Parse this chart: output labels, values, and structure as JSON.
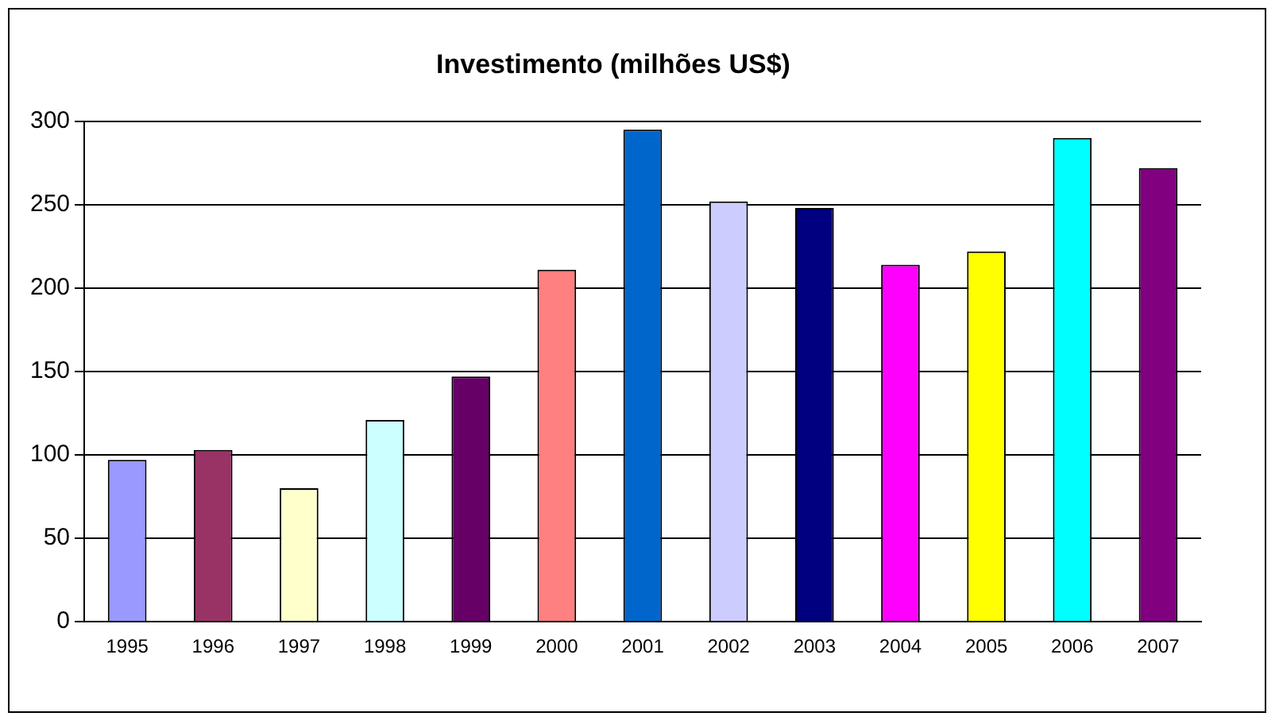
{
  "chart_data": {
    "type": "bar",
    "title": "Investimento (milhões US$)",
    "categories": [
      "1995",
      "1996",
      "1997",
      "1998",
      "1999",
      "2000",
      "2001",
      "2002",
      "2003",
      "2004",
      "2005",
      "2006",
      "2007"
    ],
    "values": [
      97,
      103,
      80,
      121,
      147,
      211,
      295,
      252,
      248,
      214,
      222,
      290,
      272
    ],
    "colors": [
      "#9999ff",
      "#993366",
      "#ffffcc",
      "#ccffff",
      "#660066",
      "#ff8080",
      "#0066cc",
      "#ccccff",
      "#000080",
      "#ff00ff",
      "#ffff00",
      "#00ffff",
      "#800080"
    ],
    "ylim": [
      0,
      300
    ],
    "yticks": [
      0,
      50,
      100,
      150,
      200,
      250,
      300
    ],
    "grid": "y"
  }
}
